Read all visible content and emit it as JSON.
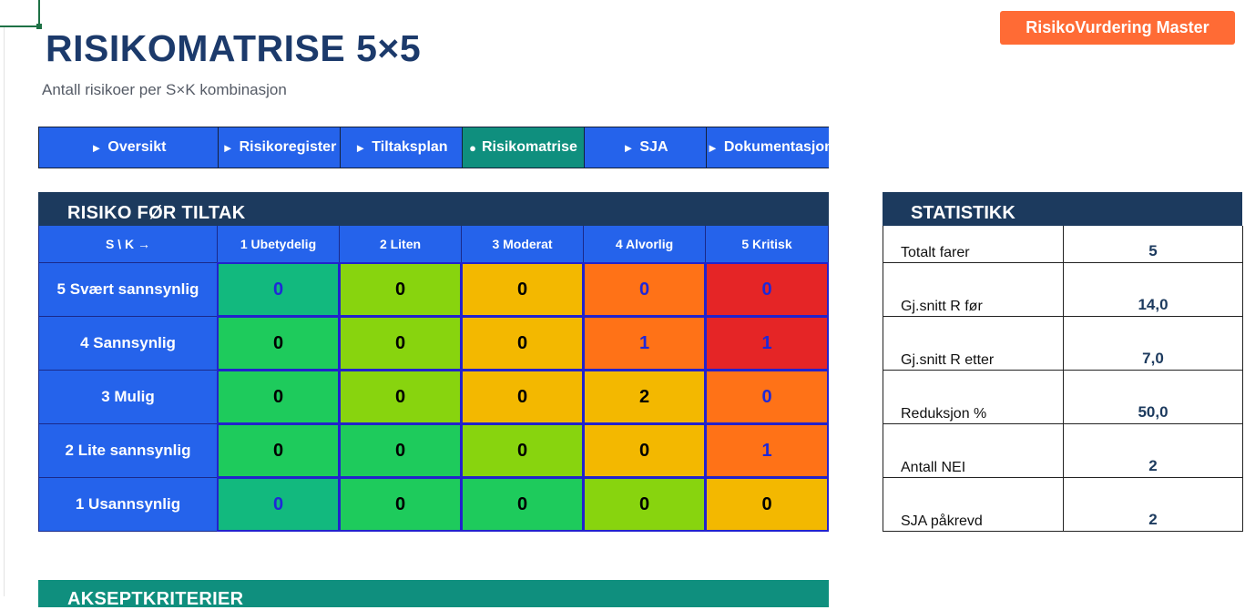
{
  "title": "RISIKOMATRISE 5×5",
  "subtitle": "Antall risikoer per S×K kombinasjon",
  "brand_label": "RisikoVurdering Master",
  "nav": [
    {
      "icon": "►",
      "label": "Oversikt"
    },
    {
      "icon": "►",
      "label": "Risikoregister"
    },
    {
      "icon": "►",
      "label": "Tiltaksplan"
    },
    {
      "icon": "●",
      "label": "Risikomatrise",
      "active": true
    },
    {
      "icon": "►",
      "label": "SJA"
    },
    {
      "icon": "►",
      "label": "Dokumentasjon"
    }
  ],
  "matrix": {
    "heading": "RISIKO FØR TILTAK",
    "corner": "S \\ K →",
    "columns": [
      "1 Ubetydelig",
      "2 Liten",
      "3 Moderat",
      "4 Alvorlig",
      "5 Kritisk"
    ],
    "rows": [
      {
        "label": "5 Svært sannsynlig",
        "values": [
          "0",
          "0",
          "0",
          "0",
          "0"
        ]
      },
      {
        "label": "4 Sannsynlig",
        "values": [
          "0",
          "0",
          "0",
          "1",
          "1"
        ]
      },
      {
        "label": "3 Mulig",
        "values": [
          "0",
          "0",
          "0",
          "2",
          "0"
        ]
      },
      {
        "label": "2 Lite sannsynlig",
        "values": [
          "0",
          "0",
          "0",
          "0",
          "1"
        ]
      },
      {
        "label": "1 Usannsynlig",
        "values": [
          "0",
          "0",
          "0",
          "0",
          "0"
        ]
      }
    ],
    "colors": {
      "teal": "#12b97e",
      "green": "#1ecb5c",
      "lime": "#88d40e",
      "yellow": "#f3b800",
      "orange": "#ff7217",
      "red": "#e52526"
    }
  },
  "stats": {
    "heading": "STATISTIKK",
    "rows": [
      {
        "label": "Totalt farer",
        "value": "5"
      },
      {
        "label": "Gj.snitt R før",
        "value": "14,0"
      },
      {
        "label": "Gj.snitt R etter",
        "value": "7,0"
      },
      {
        "label": "Reduksjon %",
        "value": "50,0"
      },
      {
        "label": "Antall NEI",
        "value": "2"
      },
      {
        "label": "SJA påkrevd",
        "value": "2"
      }
    ]
  },
  "accept_heading": "AKSEPTKRITERIER"
}
